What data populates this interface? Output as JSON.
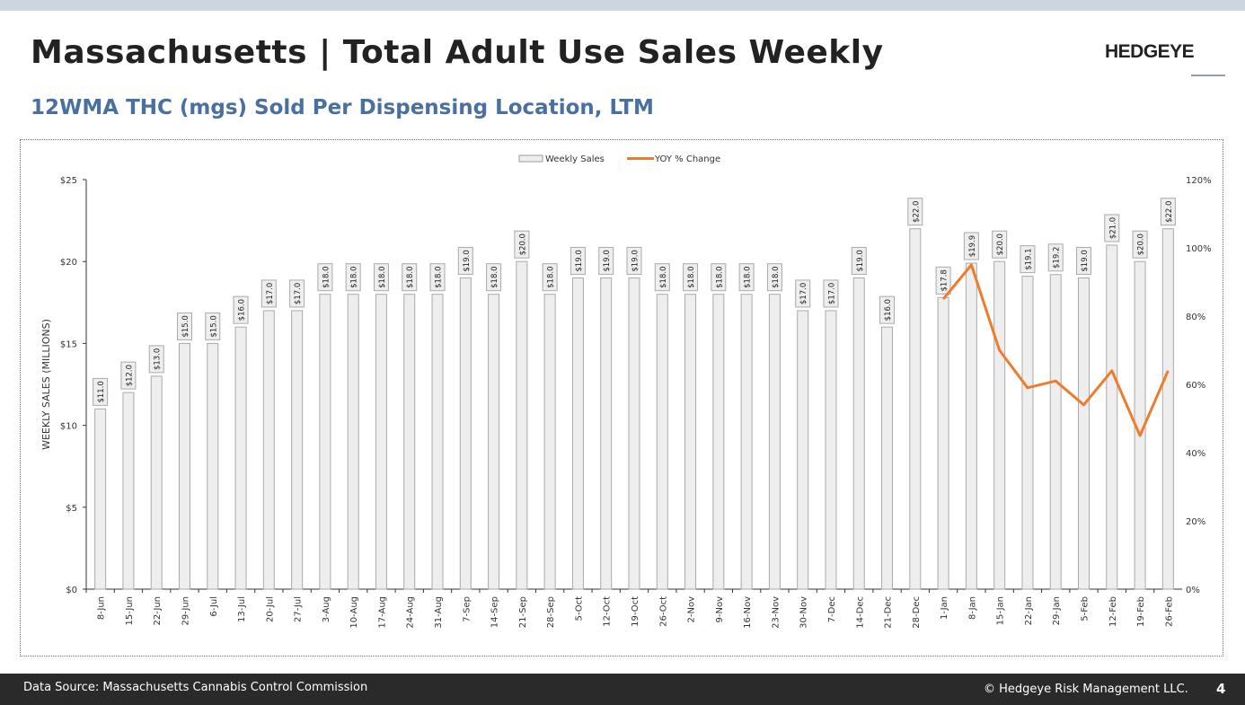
{
  "header": {
    "title": "Massachusetts | Total Adult Use Sales Weekly",
    "logo": "HEDGEYE",
    "subtitle": "12WMA THC (mgs) Sold Per Dispensing Location, LTM"
  },
  "footer": {
    "source": "Data Source: Massachusetts Cannabis Control Commission",
    "copyright": "© Hedgeye Risk Management LLC.",
    "page": "4"
  },
  "chart_data": {
    "type": "bar",
    "ylabel": "WEEKLY SALES (MILLIONS)",
    "ylim": [
      0,
      25
    ],
    "yticks": [
      "$0",
      "$5",
      "$10",
      "$15",
      "$20",
      "$25"
    ],
    "y2lim": [
      0,
      120
    ],
    "y2ticks": [
      "0%",
      "20%",
      "40%",
      "60%",
      "80%",
      "100%",
      "120%"
    ],
    "legend_position": "top-center",
    "categories": [
      "8-Jun",
      "15-Jun",
      "22-Jun",
      "29-Jun",
      "6-Jul",
      "13-Jul",
      "20-Jul",
      "27-Jul",
      "3-Aug",
      "10-Aug",
      "17-Aug",
      "24-Aug",
      "31-Aug",
      "7-Sep",
      "14-Sep",
      "21-Sep",
      "28-Sep",
      "5-Oct",
      "12-Oct",
      "19-Oct",
      "26-Oct",
      "2-Nov",
      "9-Nov",
      "16-Nov",
      "23-Nov",
      "30-Nov",
      "7-Dec",
      "14-Dec",
      "21-Dec",
      "28-Dec",
      "1-Jan",
      "8-Jan",
      "15-Jan",
      "22-Jan",
      "29-Jan",
      "5-Feb",
      "12-Feb",
      "19-Feb",
      "26-Feb"
    ],
    "series": [
      {
        "name": "Weekly Sales",
        "type": "bar",
        "color": "#eeeeee",
        "values": [
          11,
          12,
          13,
          15,
          15,
          16,
          17,
          17,
          18,
          18,
          18,
          18,
          18,
          19,
          18,
          20,
          18,
          19,
          19,
          19,
          18,
          18,
          18,
          18,
          18,
          17,
          17,
          19,
          16,
          22,
          17.8,
          19.9,
          20,
          19.1,
          19.2,
          19,
          21,
          20,
          22
        ]
      },
      {
        "name": "YOY % Change",
        "type": "line",
        "axis": "right",
        "color": "#ef7b2d",
        "values": [
          null,
          null,
          null,
          null,
          null,
          null,
          null,
          null,
          null,
          null,
          null,
          null,
          null,
          null,
          null,
          null,
          null,
          null,
          null,
          null,
          null,
          null,
          null,
          null,
          null,
          null,
          null,
          null,
          null,
          null,
          85,
          95,
          70,
          59,
          61,
          54,
          64,
          45,
          64
        ]
      }
    ]
  }
}
